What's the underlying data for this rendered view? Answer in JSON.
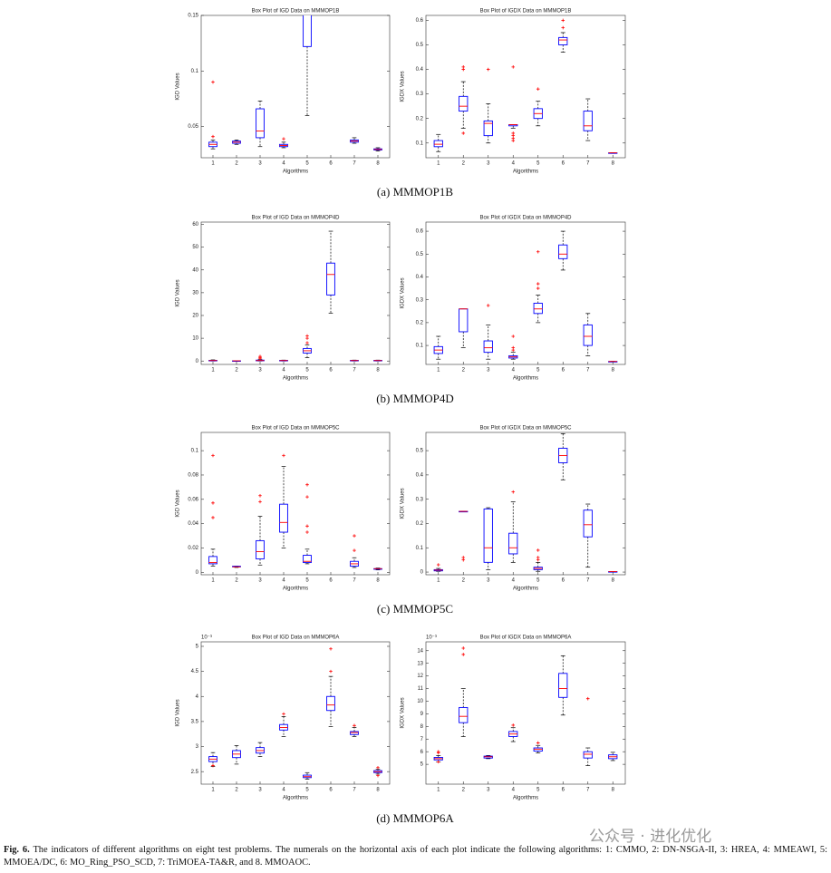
{
  "chart_data": [
    {
      "type": "box",
      "title": "Box Plot of IGD Data on MMMOP1B",
      "xlabel": "Algorithms",
      "ylabel": "IGD Values",
      "categories": [
        "1",
        "2",
        "3",
        "4",
        "5",
        "6",
        "7",
        "8"
      ],
      "ylim": [
        0.022,
        0.15
      ],
      "yticks": [
        0.05,
        0.1,
        0.15
      ],
      "whisker_low": [
        0.03,
        0.034,
        0.032,
        0.031,
        0.06,
        null,
        0.035,
        0.028
      ],
      "q1": [
        0.032,
        0.035,
        0.04,
        0.032,
        0.122,
        null,
        0.036,
        0.029
      ],
      "median": [
        0.034,
        0.036,
        0.046,
        0.033,
        0.16,
        null,
        0.037,
        0.0295
      ],
      "q3": [
        0.036,
        0.037,
        0.066,
        0.034,
        0.18,
        null,
        0.038,
        0.03
      ],
      "whisker_high": [
        0.038,
        0.038,
        0.073,
        0.036,
        0.2,
        null,
        0.04,
        0.031
      ],
      "outliers": [
        [
          0.09,
          0.041
        ],
        [],
        [],
        [
          0.039
        ],
        [],
        [],
        [],
        []
      ],
      "box_color": "#0000ff",
      "median_color": "#ff0000",
      "outlier_color": "#ff0000"
    },
    {
      "type": "box",
      "title": "Box Plot of IGDX Data on MMMOP1B",
      "xlabel": "Algorithms",
      "ylabel": "IGDX Values",
      "categories": [
        "1",
        "2",
        "3",
        "4",
        "5",
        "6",
        "7",
        "8"
      ],
      "ylim": [
        0.04,
        0.62
      ],
      "yticks": [
        0.1,
        0.2,
        0.3,
        0.4,
        0.5,
        0.6
      ],
      "whisker_low": [
        0.065,
        0.16,
        0.1,
        0.16,
        0.17,
        0.47,
        0.11,
        0.06
      ],
      "q1": [
        0.085,
        0.23,
        0.13,
        0.17,
        0.2,
        0.5,
        0.15,
        0.06
      ],
      "median": [
        0.095,
        0.25,
        0.18,
        0.175,
        0.22,
        0.52,
        0.17,
        0.06
      ],
      "q3": [
        0.11,
        0.29,
        0.19,
        0.175,
        0.24,
        0.53,
        0.23,
        0.06
      ],
      "whisker_high": [
        0.135,
        0.35,
        0.26,
        0.175,
        0.27,
        0.55,
        0.28,
        0.06
      ],
      "outliers": [
        [],
        [
          0.41,
          0.4,
          0.14
        ],
        [
          0.4
        ],
        [
          0.41,
          0.14,
          0.12,
          0.11,
          0.13
        ],
        [
          0.32
        ],
        [
          0.6,
          0.57
        ],
        [],
        []
      ],
      "box_color": "#0000ff",
      "median_color": "#ff0000",
      "outlier_color": "#ff0000"
    },
    {
      "type": "box",
      "title": "Box Plot of IGD Data on MMMOP4D",
      "xlabel": "Algorithms",
      "ylabel": "IGD Values",
      "categories": [
        "1",
        "2",
        "3",
        "4",
        "5",
        "6",
        "7",
        "8"
      ],
      "ylim": [
        -1.5,
        61
      ],
      "yticks": [
        0,
        10,
        20,
        30,
        40,
        50,
        60
      ],
      "whisker_low": [
        0,
        0,
        0,
        0,
        1.5,
        21,
        0,
        0
      ],
      "q1": [
        0.1,
        0.1,
        0.1,
        0.1,
        3.5,
        29,
        0.1,
        0.1
      ],
      "median": [
        0.2,
        0.1,
        0.2,
        0.2,
        4.5,
        38,
        0.2,
        0.2
      ],
      "q3": [
        0.3,
        0.1,
        0.4,
        0.3,
        5.5,
        43,
        0.3,
        0.3
      ],
      "whisker_high": [
        0.5,
        0.1,
        0.8,
        0.4,
        7,
        57,
        0.4,
        0.4
      ],
      "outliers": [
        [],
        [],
        [
          1.5,
          2,
          1
        ],
        [],
        [
          8,
          11,
          10
        ],
        [],
        [],
        []
      ],
      "box_color": "#0000ff",
      "median_color": "#ff0000",
      "outlier_color": "#ff0000"
    },
    {
      "type": "box",
      "title": "Box Plot of IGDX Data on MMMOP4D",
      "xlabel": "Algorithms",
      "ylabel": "IGDX Values",
      "categories": [
        "1",
        "2",
        "3",
        "4",
        "5",
        "6",
        "7",
        "8"
      ],
      "ylim": [
        0.017,
        0.64
      ],
      "yticks": [
        0.1,
        0.2,
        0.3,
        0.4,
        0.5,
        0.6
      ],
      "whisker_low": [
        0.04,
        0.09,
        0.04,
        0.04,
        0.2,
        0.43,
        0.055,
        0.03
      ],
      "q1": [
        0.065,
        0.16,
        0.07,
        0.045,
        0.24,
        0.48,
        0.1,
        0.03
      ],
      "median": [
        0.08,
        0.26,
        0.09,
        0.05,
        0.26,
        0.5,
        0.14,
        0.03
      ],
      "q3": [
        0.095,
        0.26,
        0.12,
        0.055,
        0.285,
        0.54,
        0.19,
        0.03
      ],
      "whisker_high": [
        0.14,
        0.26,
        0.19,
        0.07,
        0.32,
        0.6,
        0.24,
        0.03
      ],
      "outliers": [
        [],
        [],
        [
          0.275
        ],
        [
          0.14,
          0.09,
          0.08
        ],
        [
          0.51,
          0.35,
          0.37
        ],
        [],
        [],
        []
      ],
      "box_color": "#0000ff",
      "median_color": "#ff0000",
      "outlier_color": "#ff0000"
    },
    {
      "type": "box",
      "title": "Box Plot of IGD Data on MMMOP5C",
      "xlabel": "Algorithms",
      "ylabel": "IGD Values",
      "categories": [
        "1",
        "2",
        "3",
        "4",
        "5",
        "6",
        "7",
        "8"
      ],
      "ylim": [
        -0.002,
        0.115
      ],
      "yticks": [
        0,
        0.02,
        0.04,
        0.06,
        0.08,
        0.1
      ],
      "whisker_low": [
        0.005,
        0.004,
        0.006,
        0.02,
        0.007,
        null,
        0.004,
        0.002
      ],
      "q1": [
        0.007,
        0.0045,
        0.011,
        0.033,
        0.008,
        null,
        0.005,
        0.0025
      ],
      "median": [
        0.008,
        0.0045,
        0.017,
        0.041,
        0.009,
        null,
        0.007,
        0.003
      ],
      "q3": [
        0.013,
        0.005,
        0.026,
        0.056,
        0.014,
        null,
        0.009,
        0.003
      ],
      "whisker_high": [
        0.019,
        0.005,
        0.046,
        0.087,
        0.019,
        null,
        0.012,
        0.0035
      ],
      "outliers": [
        [
          0.096,
          0.057,
          0.045
        ],
        [],
        [
          0.063,
          0.058
        ],
        [
          0.096
        ],
        [
          0.072,
          0.062,
          0.038,
          0.033
        ],
        [],
        [
          0.03,
          0.018
        ],
        []
      ],
      "box_color": "#0000ff",
      "median_color": "#ff0000",
      "outlier_color": "#ff0000"
    },
    {
      "type": "box",
      "title": "Box Plot of IGDX Data on MMMOP5C",
      "xlabel": "Algorithms",
      "ylabel": "IGDX Values",
      "categories": [
        "1",
        "2",
        "3",
        "4",
        "5",
        "6",
        "7",
        "8"
      ],
      "ylim": [
        -0.011,
        0.575
      ],
      "yticks": [
        0,
        0.1,
        0.2,
        0.3,
        0.4,
        0.5
      ],
      "whisker_low": [
        0.003,
        0.25,
        0.01,
        0.04,
        0.003,
        0.38,
        0.02,
        0.002
      ],
      "q1": [
        0.005,
        0.25,
        0.04,
        0.075,
        0.01,
        0.45,
        0.145,
        0.002
      ],
      "median": [
        0.008,
        0.25,
        0.1,
        0.1,
        0.015,
        0.48,
        0.195,
        0.002
      ],
      "q3": [
        0.01,
        0.25,
        0.26,
        0.16,
        0.02,
        0.51,
        0.255,
        0.002
      ],
      "whisker_high": [
        0.015,
        0.25,
        0.265,
        0.29,
        0.04,
        0.57,
        0.28,
        0.002
      ],
      "outliers": [
        [
          0.03
        ],
        [
          0.06,
          0.05
        ],
        [],
        [
          0.33
        ],
        [
          0.09,
          0.06,
          0.05
        ],
        [],
        [],
        []
      ],
      "box_color": "#0000ff",
      "median_color": "#ff0000",
      "outlier_color": "#ff0000"
    },
    {
      "type": "box",
      "title": "Box Plot of IGD Data on MMMOP6A",
      "xlabel": "Algorithms",
      "ylabel": "IGD Values",
      "exponent_label": "10⁻³",
      "categories": [
        "1",
        "2",
        "3",
        "4",
        "5",
        "6",
        "7",
        "8"
      ],
      "ylim": [
        2.25,
        5.09
      ],
      "yticks": [
        2.5,
        3,
        3.5,
        4,
        4.5,
        5
      ],
      "whisker_low": [
        2.6,
        2.65,
        2.8,
        3.2,
        2.35,
        3.4,
        3.2,
        2.45
      ],
      "q1": [
        2.7,
        2.78,
        2.87,
        3.33,
        2.38,
        3.72,
        3.24,
        2.48
      ],
      "median": [
        2.75,
        2.85,
        2.92,
        3.38,
        2.4,
        3.83,
        3.28,
        2.5
      ],
      "q3": [
        2.8,
        2.92,
        2.98,
        3.44,
        2.43,
        4.0,
        3.3,
        2.52
      ],
      "whisker_high": [
        2.88,
        3.02,
        3.08,
        3.6,
        2.48,
        4.4,
        3.38,
        2.55
      ],
      "outliers": [
        [
          2.62
        ],
        [],
        [],
        [
          3.65
        ],
        [],
        [
          4.95,
          4.5
        ],
        [
          3.42
        ],
        [
          2.42,
          2.58
        ]
      ],
      "box_color": "#0000ff",
      "median_color": "#ff0000",
      "outlier_color": "#ff0000"
    },
    {
      "type": "box",
      "title": "Box Plot of IGDX Data on MMMOP6A",
      "xlabel": "Algorithms",
      "ylabel": "IGDX Values",
      "exponent_label": "10⁻³",
      "categories": [
        "1",
        "2",
        "3",
        "4",
        "5",
        "6",
        "7",
        "8"
      ],
      "ylim": [
        3.43,
        14.7
      ],
      "yticks": [
        5,
        6,
        7,
        8,
        9,
        10,
        11,
        12,
        13,
        14
      ],
      "whisker_low": [
        5.2,
        7.2,
        5.45,
        6.8,
        5.9,
        8.9,
        4.9,
        5.3
      ],
      "q1": [
        5.35,
        8.3,
        5.5,
        7.2,
        6.05,
        10.3,
        5.5,
        5.45
      ],
      "median": [
        5.45,
        8.8,
        5.6,
        7.4,
        6.2,
        11,
        5.8,
        5.6
      ],
      "q3": [
        5.55,
        9.5,
        5.65,
        7.6,
        6.3,
        12.2,
        6.0,
        5.75
      ],
      "whisker_high": [
        5.7,
        11,
        5.7,
        7.9,
        6.5,
        13.6,
        6.3,
        5.95
      ],
      "outliers": [
        [
          5.9,
          6.0,
          5.2
        ],
        [
          14.2,
          13.7
        ],
        [],
        [
          8.1
        ],
        [
          6.7
        ],
        [],
        [
          10.2
        ],
        []
      ],
      "box_color": "#0000ff",
      "median_color": "#ff0000",
      "outlier_color": "#ff0000"
    }
  ],
  "subcaptions": [
    "(a)  MMMOP1B",
    "(b)  MMMOP4D",
    "(c)  MMMOP5C",
    "(d)  MMMOP6A"
  ],
  "caption_label": "Fig. 6.",
  "caption": "The indicators of different algorithms on eight test problems. The numerals on the horizontal axis of each plot indicate the following algorithms: 1: CMMO, 2: DN-NSGA-II, 3: HREA, 4: MMEAWI, 5: MMOEA/DC, 6: MO_Ring_PSO_SCD, 7: TriMOEA-TA&R, and 8. MMOAOC.",
  "watermark": "公众号 · 进化优化"
}
